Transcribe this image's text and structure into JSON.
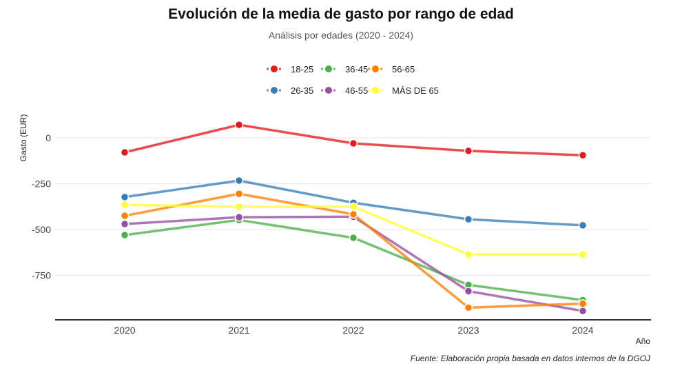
{
  "chart_data": {
    "type": "line",
    "title": "Evolución de la media de gasto por rango de edad",
    "subtitle": "Análisis por edades (2020 - 2024)",
    "xlabel": "Año",
    "ylabel": "Gasto (EUR)",
    "caption": "Fuente: Elaboración propia basada en datos internos de la DGOJ",
    "x": [
      "2020",
      "2021",
      "2022",
      "2023",
      "2024"
    ],
    "yticks": [
      0,
      -250,
      -500,
      -750
    ],
    "ytick_labels": [
      "0",
      "-250",
      "-500",
      "-750"
    ],
    "ylim": [
      -990,
      130
    ],
    "grid": true,
    "legend_position": "top-center",
    "series": [
      {
        "name": "18-25",
        "color": "#E41A1C",
        "values": [
          -79,
          71,
          -30,
          -71,
          -95
        ]
      },
      {
        "name": "26-35",
        "color": "#377EB8",
        "values": [
          -323,
          -233,
          -354,
          -444,
          -477
        ]
      },
      {
        "name": "36-45",
        "color": "#4DAF4A",
        "values": [
          -530,
          -448,
          -545,
          -802,
          -885
        ]
      },
      {
        "name": "46-55",
        "color": "#984EA3",
        "values": [
          -470,
          -433,
          -430,
          -836,
          -944
        ]
      },
      {
        "name": "56-65",
        "color": "#FF7F00",
        "values": [
          -425,
          -305,
          -417,
          -926,
          -904
        ]
      },
      {
        "name": "MÁS DE 65",
        "color": "#FFFF33",
        "values": [
          -365,
          -376,
          -376,
          -636,
          -636
        ]
      }
    ],
    "legend_order": [
      "18-25",
      "36-45",
      "56-65",
      "26-35",
      "46-55",
      "MÁS DE 65"
    ]
  }
}
